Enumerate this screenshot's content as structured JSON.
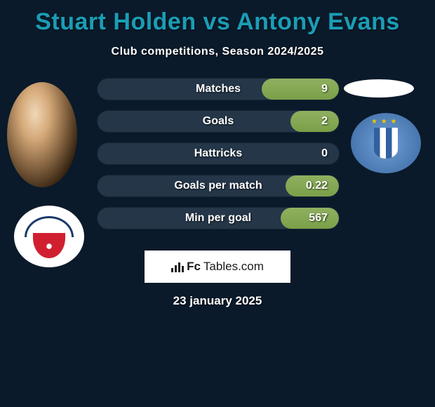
{
  "title": "Stuart Holden vs Antony Evans",
  "subtitle": "Club competitions, Season 2024/2025",
  "title_color": "#1b9db5",
  "background_color": "#0a1a2a",
  "pill_bg": "#243648",
  "pill_fill": "#7aa048",
  "stats": [
    {
      "label": "Matches",
      "value": "9",
      "fill_pct": 32
    },
    {
      "label": "Goals",
      "value": "2",
      "fill_pct": 20
    },
    {
      "label": "Hattricks",
      "value": "0",
      "fill_pct": 0
    },
    {
      "label": "Goals per match",
      "value": "0.22",
      "fill_pct": 22
    },
    {
      "label": "Min per goal",
      "value": "567",
      "fill_pct": 24
    }
  ],
  "left_player": {
    "name": "Stuart Holden",
    "club": "Bolton Wanderers",
    "crest_colors": {
      "ribbon": "#1a3a6a",
      "shield": "#d02030"
    }
  },
  "right_player": {
    "name": "Antony Evans",
    "club": "Huddersfield Town",
    "crest_colors": {
      "bg": "#5a88c0",
      "stripe": "#3060a0",
      "star": "#f0c800"
    }
  },
  "footer": {
    "brand_prefix": "Fc",
    "brand_suffix": "Tables.com"
  },
  "date": "23 january 2025"
}
